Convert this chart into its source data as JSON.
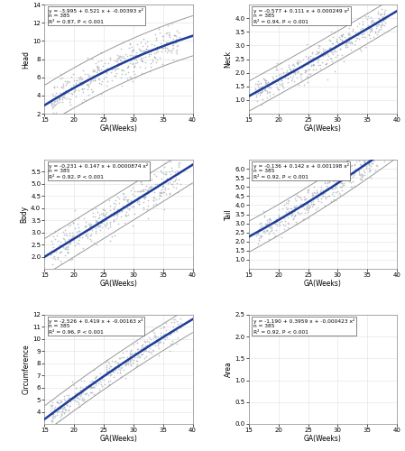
{
  "panels": [
    {
      "ylabel": "Head",
      "xlabel": "GA(Weeks)",
      "eq_line1": "y = -3.995 + 0.521 x + -0.00393 x²",
      "eq_line2": "n = 385",
      "eq_line3": "R² = 0.87, P < 0.001",
      "a": -3.995,
      "b": 0.521,
      "c": -0.00393,
      "xlim": [
        15,
        40
      ],
      "ylim": [
        2,
        14
      ],
      "yticks": [
        2,
        4,
        6,
        8,
        10,
        12,
        14
      ],
      "xticks": [
        15,
        20,
        25,
        30,
        35,
        40
      ],
      "noise": 0.9,
      "ci_outer": 2.2,
      "seed": 42
    },
    {
      "ylabel": "Neck",
      "xlabel": "GA(Weeks)",
      "eq_line1": "y = -0.577 + 0.111 x + 0.000249 x²",
      "eq_line2": "n = 385",
      "eq_line3": "R² = 0.94, P < 0.001",
      "a": -0.577,
      "b": 0.111,
      "c": 0.000249,
      "xlim": [
        15,
        40
      ],
      "ylim": [
        0.5,
        4.5
      ],
      "yticks": [
        1.0,
        1.5,
        2.0,
        2.5,
        3.0,
        3.5,
        4.0
      ],
      "xticks": [
        15,
        20,
        25,
        30,
        35,
        40
      ],
      "noise": 0.25,
      "ci_outer": 0.55,
      "seed": 43
    },
    {
      "ylabel": "Body",
      "xlabel": "GA(Weeks)",
      "eq_line1": "y = -0.231 + 0.147 x + 0.0000874 x²",
      "eq_line2": "n = 385",
      "eq_line3": "R² = 0.92, P < 0.001",
      "a": -0.231,
      "b": 0.147,
      "c": 8.74e-05,
      "xlim": [
        15,
        40
      ],
      "ylim": [
        1.5,
        6.0
      ],
      "yticks": [
        2.0,
        2.5,
        3.0,
        3.5,
        4.0,
        4.5,
        5.0,
        5.5
      ],
      "xticks": [
        15,
        20,
        25,
        30,
        35,
        40
      ],
      "noise": 0.35,
      "ci_outer": 0.75,
      "seed": 44
    },
    {
      "ylabel": "Tail",
      "xlabel": "GA(Weeks)",
      "eq_line1": "y = -0.136 + 0.142 x + 0.001198 x²",
      "eq_line2": "n = 385",
      "eq_line3": "R² = 0.92, P < 0.001",
      "a": -0.136,
      "b": 0.142,
      "c": 0.001198,
      "xlim": [
        15,
        40
      ],
      "ylim": [
        0.5,
        6.5
      ],
      "yticks": [
        1.0,
        1.5,
        2.0,
        2.5,
        3.0,
        3.5,
        4.0,
        4.5,
        5.0,
        5.5,
        6.0
      ],
      "xticks": [
        15,
        20,
        25,
        30,
        35,
        40
      ],
      "noise": 0.4,
      "ci_outer": 0.85,
      "seed": 45
    },
    {
      "ylabel": "Circumference",
      "xlabel": "GA(Weeks)",
      "eq_line1": "y = -2.526 + 0.419 x + -0.00163 x²",
      "eq_line2": "n = 385",
      "eq_line3": "R² = 0.96, P < 0.001",
      "a": -2.526,
      "b": 0.419,
      "c": -0.00163,
      "xlim": [
        15,
        40
      ],
      "ylim": [
        3,
        12
      ],
      "yticks": [
        4,
        5,
        6,
        7,
        8,
        9,
        10,
        11,
        12
      ],
      "xticks": [
        15,
        20,
        25,
        30,
        35,
        40
      ],
      "noise": 0.5,
      "ci_outer": 1.1,
      "seed": 46
    },
    {
      "ylabel": "Area",
      "xlabel": "GA(Weeks)",
      "eq_line1": "y = -1.190 + 0.3959 x + -0.000423 x²",
      "eq_line2": "n = 385",
      "eq_line3": "R² = 0.92, P < 0.001",
      "a": -1.19,
      "b": 0.3959,
      "c": -0.000423,
      "xlim": [
        15,
        40
      ],
      "ylim": [
        0.0,
        2.5
      ],
      "yticks": [
        0.0,
        0.5,
        1.0,
        1.5,
        2.0,
        2.5
      ],
      "xticks": [
        15,
        20,
        25,
        30,
        35,
        40
      ],
      "noise": 0.2,
      "ci_outer": 0.42,
      "seed": 47
    }
  ],
  "scatter_color": "#adb5bd",
  "line_color": "#1f3d99",
  "ci_color": "#999999",
  "bg_color": "#ffffff",
  "grid_color": "#e0e0e0",
  "n_points": 385,
  "label_fontsize": 5.5,
  "tick_fontsize": 5.0,
  "annot_fontsize": 4.2
}
